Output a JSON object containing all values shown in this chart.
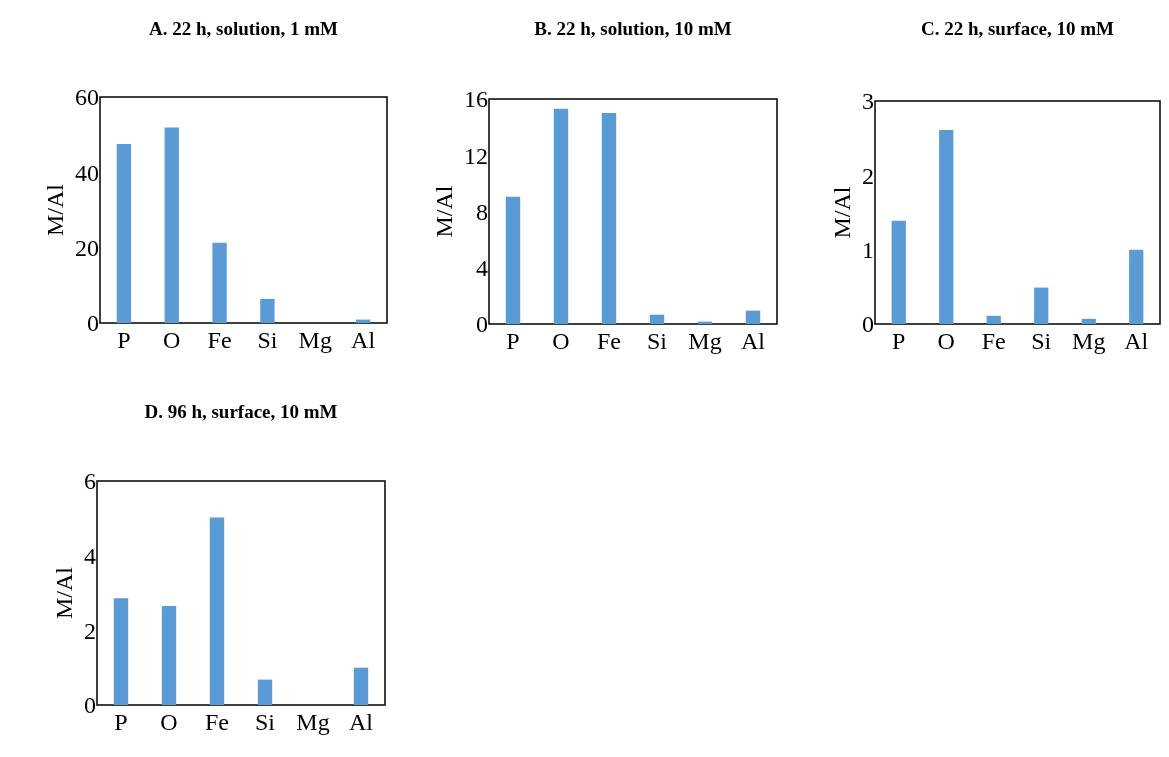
{
  "chart_data": [
    {
      "type": "bar",
      "title": "A. 22 h, solution, 1 mM",
      "ylabel": "M/Al",
      "categories": [
        "P",
        "O",
        "Fe",
        "Si",
        "Mg",
        "Al"
      ],
      "values": [
        47.5,
        51.9,
        21.3,
        6.4,
        0,
        0.9
      ],
      "color": "#5b9bd5",
      "ylim": [
        0,
        60
      ],
      "yticks": [
        0,
        20,
        40,
        60
      ]
    },
    {
      "type": "bar",
      "title": "B. 22 h, solution, 10 mM",
      "ylabel": "M/Al",
      "categories": [
        "P",
        "O",
        "Fe",
        "Si",
        "Mg",
        "Al"
      ],
      "values": [
        9.05,
        15.3,
        15.0,
        0.66,
        0.17,
        0.95
      ],
      "color": "#5b9bd5",
      "ylim": [
        0,
        16
      ],
      "yticks": [
        0,
        4,
        8,
        12,
        16
      ]
    },
    {
      "type": "bar",
      "title": "C. 22 h, surface, 10 mM",
      "ylabel": "M/Al",
      "categories": [
        "P",
        "O",
        "Fe",
        "Si",
        "Mg",
        "Al"
      ],
      "values": [
        1.39,
        2.61,
        0.11,
        0.49,
        0.07,
        1.0
      ],
      "color": "#5b9bd5",
      "ylim": [
        0,
        3
      ],
      "yticks": [
        0,
        1,
        2,
        3
      ]
    },
    {
      "type": "bar",
      "title": "D. 96 h, surface, 10 mM",
      "ylabel": "M/Al",
      "categories": [
        "P",
        "O",
        "Fe",
        "Si",
        "Mg",
        "Al"
      ],
      "values": [
        2.86,
        2.65,
        5.02,
        0.68,
        0,
        1.0
      ],
      "color": "#5b9bd5",
      "ylim": [
        0,
        6
      ],
      "yticks": [
        0,
        2,
        4,
        6
      ]
    }
  ]
}
